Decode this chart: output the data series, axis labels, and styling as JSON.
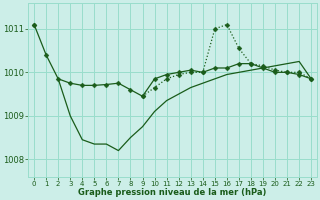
{
  "background_color": "#cceee8",
  "grid_color": "#99ddcc",
  "line_color": "#1a5c1a",
  "title": "Graphe pression niveau de la mer (hPa)",
  "xlim": [
    -0.5,
    23.5
  ],
  "ylim": [
    1007.6,
    1011.6
  ],
  "xticks": [
    0,
    1,
    2,
    3,
    4,
    5,
    6,
    7,
    8,
    9,
    10,
    11,
    12,
    13,
    14,
    15,
    16,
    17,
    18,
    19,
    20,
    21,
    22,
    23
  ],
  "yticks": [
    1008,
    1009,
    1010,
    1011
  ],
  "series1_x": [
    0,
    1,
    2,
    3,
    4,
    5,
    6,
    7,
    8,
    9,
    10,
    11,
    12,
    13,
    14,
    15,
    16,
    17,
    18,
    19,
    20,
    21,
    22,
    23
  ],
  "series1_y": [
    1011.1,
    1010.4,
    1009.85,
    1009.75,
    1009.7,
    1009.7,
    1009.72,
    1009.75,
    1009.6,
    1009.45,
    1009.85,
    1009.95,
    1010.0,
    1010.05,
    1010.0,
    1010.1,
    1010.1,
    1010.2,
    1010.2,
    1010.1,
    1010.0,
    1010.0,
    1009.95,
    1009.85
  ],
  "series2_x": [
    2,
    3,
    4,
    5,
    6,
    7,
    8,
    9,
    10,
    11,
    12,
    13,
    14,
    15,
    16,
    17,
    18,
    19,
    20,
    21,
    22,
    23
  ],
  "series2_y": [
    1009.85,
    1009.0,
    1008.45,
    1008.35,
    1008.35,
    1008.2,
    1008.5,
    1008.75,
    1009.1,
    1009.35,
    1009.5,
    1009.65,
    1009.75,
    1009.85,
    1009.95,
    1010.0,
    1010.05,
    1010.1,
    1010.15,
    1010.2,
    1010.25,
    1009.85
  ],
  "series3_x": [
    0,
    9,
    10,
    11,
    12,
    13,
    14,
    15,
    16,
    17,
    18,
    19,
    20,
    21,
    22,
    23
  ],
  "series3_y": [
    1011.1,
    1009.45,
    1009.65,
    1009.85,
    1009.95,
    1010.0,
    1010.0,
    1011.0,
    1011.1,
    1010.55,
    1010.2,
    1010.15,
    1010.05,
    1010.0,
    1010.0,
    1009.85
  ],
  "series3_gap": true
}
